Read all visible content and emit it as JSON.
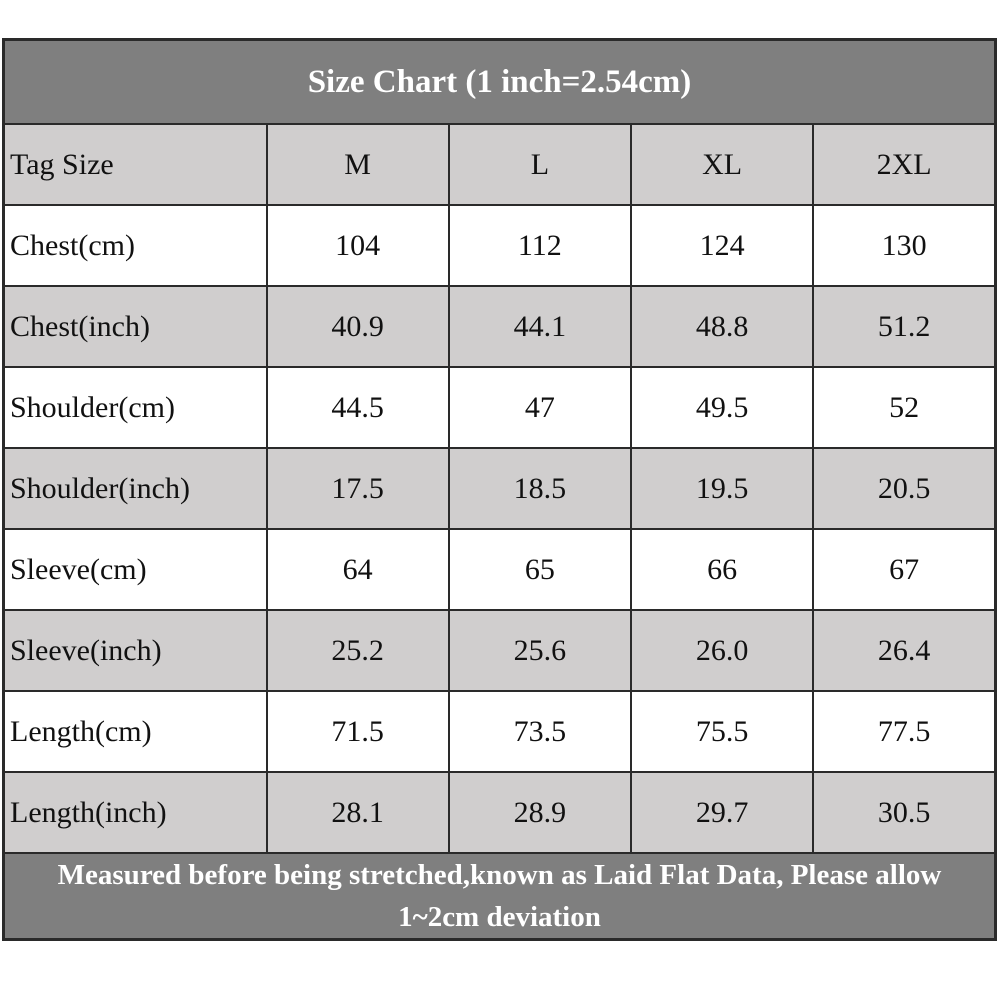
{
  "title": "Size Chart (1 inch=2.54cm)",
  "table": {
    "header": [
      "Tag Size",
      "M",
      "L",
      "XL",
      "2XL"
    ],
    "rows": [
      [
        "Chest(cm)",
        "104",
        "112",
        "124",
        "130"
      ],
      [
        "Chest(inch)",
        "40.9",
        "44.1",
        "48.8",
        "51.2"
      ],
      [
        "Shoulder(cm)",
        "44.5",
        "47",
        "49.5",
        "52"
      ],
      [
        "Shoulder(inch)",
        "17.5",
        "18.5",
        "19.5",
        "20.5"
      ],
      [
        "Sleeve(cm)",
        "64",
        "65",
        "66",
        "67"
      ],
      [
        "Sleeve(inch)",
        "25.2",
        "25.6",
        "26.0",
        "26.4"
      ],
      [
        "Length(cm)",
        "71.5",
        "73.5",
        "75.5",
        "77.5"
      ],
      [
        "Length(inch)",
        "28.1",
        "28.9",
        "29.7",
        "30.5"
      ]
    ]
  },
  "footer": "Measured before being stretched,known as Laid Flat Data, Please allow 1~2cm deviation"
}
